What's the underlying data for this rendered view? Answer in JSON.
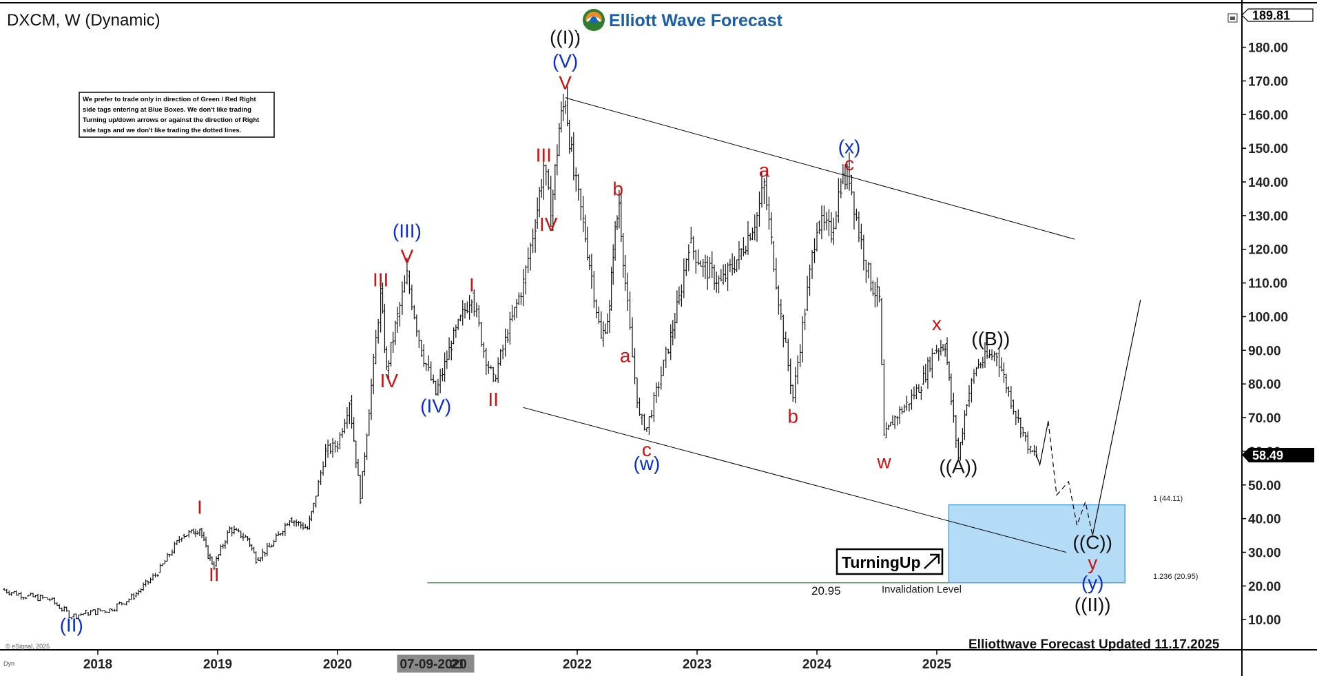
{
  "header": {
    "symbol_title": "DXCM, W (Dynamic)",
    "logo_text": "Elliott Wave Forecast",
    "footer_updated": "Elliottwave Forecast Updated 11.17.2025",
    "copyright": "© eSignal, 2025",
    "corner_tag": "Dyn"
  },
  "note_box": {
    "lines": [
      "We prefer to trade only in direction of Green / Red Right",
      "side tags entering at Blue Boxes. We don't like trading",
      "Turning up/down arrows or against the direction of Right",
      "side tags and we don't like trading the dotted lines."
    ]
  },
  "badge": {
    "text": "TurningUp"
  },
  "invalidation": {
    "value": "20.95",
    "label": "Invalidation Level"
  },
  "box_labels": {
    "top": "1 (44.11)",
    "bottom": "1.236 (20.95)"
  },
  "price_tags": {
    "top": "189.81",
    "current": "58.49"
  },
  "colors": {
    "accent_blue": "#0b2ed6",
    "label_red": "#d01010",
    "box_fill": "#b5dcf7",
    "box_border": "#4da3e0"
  },
  "chart_data": {
    "type": "line",
    "subtype": "weekly-bar",
    "title": "DXCM, W (Dynamic)",
    "xlabel": "",
    "ylabel": "",
    "ylim": [
      5,
      194
    ],
    "y_ticks": [
      "10.00",
      "20.00",
      "30.00",
      "40.00",
      "50.00",
      "60.00",
      "70.00",
      "80.00",
      "90.00",
      "100.00",
      "110.00",
      "120.00",
      "130.00",
      "140.00",
      "150.00",
      "160.00",
      "170.00",
      "180.00"
    ],
    "x_ticks": [
      {
        "label": "2018",
        "t": 2018.0
      },
      {
        "label": "2019",
        "t": 2019.0
      },
      {
        "label": "2020",
        "t": 2020.0
      },
      {
        "label": "07-09-2020",
        "t": 2020.52,
        "highlight": true
      },
      {
        "label": "21",
        "t": 2021.0
      },
      {
        "label": "2022",
        "t": 2022.0
      },
      {
        "label": "2023",
        "t": 2023.0
      },
      {
        "label": "2024",
        "t": 2024.0
      },
      {
        "label": "2025",
        "t": 2025.0
      }
    ],
    "series": [
      {
        "points": [
          [
            2017.2,
            19
          ],
          [
            2017.4,
            17
          ],
          [
            2017.6,
            16
          ],
          [
            2017.78,
            11
          ],
          [
            2017.9,
            12
          ],
          [
            2018.1,
            13
          ],
          [
            2018.3,
            17
          ],
          [
            2018.5,
            24
          ],
          [
            2018.7,
            35
          ],
          [
            2018.8,
            36
          ],
          [
            2018.85,
            37
          ],
          [
            2018.92,
            29
          ],
          [
            2018.97,
            26
          ],
          [
            2019.1,
            37
          ],
          [
            2019.25,
            34
          ],
          [
            2019.32,
            28
          ],
          [
            2019.45,
            32
          ],
          [
            2019.6,
            40
          ],
          [
            2019.75,
            37
          ],
          [
            2019.8,
            44
          ],
          [
            2019.9,
            60
          ],
          [
            2020.0,
            62
          ],
          [
            2020.1,
            75
          ],
          [
            2020.19,
            46
          ],
          [
            2020.3,
            86
          ],
          [
            2020.36,
            107
          ],
          [
            2020.41,
            84
          ],
          [
            2020.5,
            100
          ],
          [
            2020.58,
            112
          ],
          [
            2020.7,
            90
          ],
          [
            2020.82,
            77
          ],
          [
            2020.95,
            92
          ],
          [
            2021.12,
            107
          ],
          [
            2021.22,
            90
          ],
          [
            2021.3,
            81
          ],
          [
            2021.42,
            95
          ],
          [
            2021.55,
            110
          ],
          [
            2021.65,
            128
          ],
          [
            2021.72,
            145
          ],
          [
            2021.78,
            130
          ],
          [
            2021.85,
            156
          ],
          [
            2021.9,
            165
          ],
          [
            2021.97,
            142
          ],
          [
            2022.05,
            128
          ],
          [
            2022.12,
            112
          ],
          [
            2022.2,
            93
          ],
          [
            2022.27,
            102
          ],
          [
            2022.3,
            120
          ],
          [
            2022.35,
            134
          ],
          [
            2022.4,
            110
          ],
          [
            2022.46,
            88
          ],
          [
            2022.52,
            70
          ],
          [
            2022.58,
            67
          ],
          [
            2022.68,
            80
          ],
          [
            2022.78,
            94
          ],
          [
            2022.85,
            105
          ],
          [
            2022.93,
            122
          ],
          [
            2023.05,
            115
          ],
          [
            2023.2,
            110
          ],
          [
            2023.35,
            118
          ],
          [
            2023.5,
            130
          ],
          [
            2023.56,
            139
          ],
          [
            2023.62,
            122
          ],
          [
            2023.7,
            100
          ],
          [
            2023.8,
            76
          ],
          [
            2023.9,
            102
          ],
          [
            2024.0,
            128
          ],
          [
            2024.12,
            125
          ],
          [
            2024.2,
            140
          ],
          [
            2024.27,
            142
          ],
          [
            2024.35,
            125
          ],
          [
            2024.45,
            110
          ],
          [
            2024.52,
            105
          ],
          [
            2024.56,
            64
          ],
          [
            2024.65,
            70
          ],
          [
            2024.75,
            74
          ],
          [
            2024.87,
            80
          ],
          [
            2024.98,
            90
          ],
          [
            2025.07,
            92
          ],
          [
            2025.12,
            75
          ],
          [
            2025.18,
            58
          ],
          [
            2025.25,
            75
          ],
          [
            2025.33,
            85
          ],
          [
            2025.42,
            88
          ],
          [
            2025.5,
            89
          ],
          [
            2025.56,
            82
          ],
          [
            2025.62,
            75
          ],
          [
            2025.7,
            67
          ],
          [
            2025.78,
            60
          ],
          [
            2025.83,
            59
          ]
        ]
      }
    ],
    "projection": [
      [
        2025.83,
        59
      ],
      [
        2025.86,
        56
      ],
      [
        2025.93,
        69
      ],
      [
        2026.0,
        47
      ],
      [
        2026.1,
        51
      ],
      [
        2026.17,
        38
      ],
      [
        2026.24,
        45
      ],
      [
        2026.3,
        35
      ],
      [
        2026.7,
        105
      ]
    ],
    "channel": {
      "upper": [
        [
          2021.9,
          165
        ],
        [
          2024.27,
          142
        ],
        [
          2026.15,
          123
        ]
      ],
      "lower": [
        [
          2021.55,
          73
        ],
        [
          2022.6,
          66
        ],
        [
          2026.08,
          30
        ]
      ]
    },
    "target_box": {
      "x_start": 2025.1,
      "x_end": 2026.57,
      "y_top": 44.11,
      "y_bottom": 20.95
    },
    "invalidation_line": {
      "x_start": 2020.75,
      "x_end": 2025.1,
      "y": 20.95
    },
    "wave_labels": [
      {
        "text": "(II)",
        "t": 2017.78,
        "y": 6.5,
        "color": "blue"
      },
      {
        "text": "I",
        "t": 2018.85,
        "y": 41.5,
        "color": "red"
      },
      {
        "text": "II",
        "t": 2018.97,
        "y": 21.5,
        "color": "red"
      },
      {
        "text": "III",
        "t": 2020.36,
        "y": 109,
        "color": "red"
      },
      {
        "text": "IV",
        "t": 2020.43,
        "y": 79,
        "color": "red"
      },
      {
        "text": "V",
        "t": 2020.58,
        "y": 116,
        "color": "red"
      },
      {
        "text": "(III)",
        "t": 2020.58,
        "y": 123.5,
        "color": "blue"
      },
      {
        "text": "(IV)",
        "t": 2020.82,
        "y": 71.5,
        "color": "blue"
      },
      {
        "text": "I",
        "t": 2021.12,
        "y": 107.5,
        "color": "red"
      },
      {
        "text": "II",
        "t": 2021.3,
        "y": 73.5,
        "color": "red"
      },
      {
        "text": "III",
        "t": 2021.72,
        "y": 146,
        "color": "red"
      },
      {
        "text": "IV",
        "t": 2021.76,
        "y": 125.5,
        "color": "red"
      },
      {
        "text": "V",
        "t": 2021.9,
        "y": 167.5,
        "color": "red"
      },
      {
        "text": "(V)",
        "t": 2021.9,
        "y": 174,
        "color": "blue"
      },
      {
        "text": "((I))",
        "t": 2021.9,
        "y": 181,
        "color": "black"
      },
      {
        "text": "b",
        "t": 2022.34,
        "y": 136,
        "color": "red"
      },
      {
        "text": "a",
        "t": 2022.4,
        "y": 86.5,
        "color": "red"
      },
      {
        "text": "c",
        "t": 2022.58,
        "y": 58.5,
        "color": "red"
      },
      {
        "text": "(w)",
        "t": 2022.58,
        "y": 54.5,
        "color": "blue"
      },
      {
        "text": "a",
        "t": 2023.56,
        "y": 141.5,
        "color": "red"
      },
      {
        "text": "b",
        "t": 2023.8,
        "y": 68.5,
        "color": "red"
      },
      {
        "text": "c",
        "t": 2024.27,
        "y": 143.5,
        "color": "red"
      },
      {
        "text": "(x)",
        "t": 2024.27,
        "y": 148.5,
        "color": "blue"
      },
      {
        "text": "w",
        "t": 2024.56,
        "y": 55,
        "color": "red"
      },
      {
        "text": "x",
        "t": 2025.0,
        "y": 96,
        "color": "red"
      },
      {
        "text": "((A))",
        "t": 2025.18,
        "y": 53.5,
        "color": "black"
      },
      {
        "text": "((B))",
        "t": 2025.45,
        "y": 91.5,
        "color": "black"
      },
      {
        "text": "((C))",
        "t": 2026.3,
        "y": 31,
        "color": "black"
      },
      {
        "text": "y",
        "t": 2026.3,
        "y": 25,
        "color": "red"
      },
      {
        "text": "(y)",
        "t": 2026.3,
        "y": 19,
        "color": "blue"
      },
      {
        "text": "((II))",
        "t": 2026.3,
        "y": 12.5,
        "color": "black"
      }
    ]
  }
}
